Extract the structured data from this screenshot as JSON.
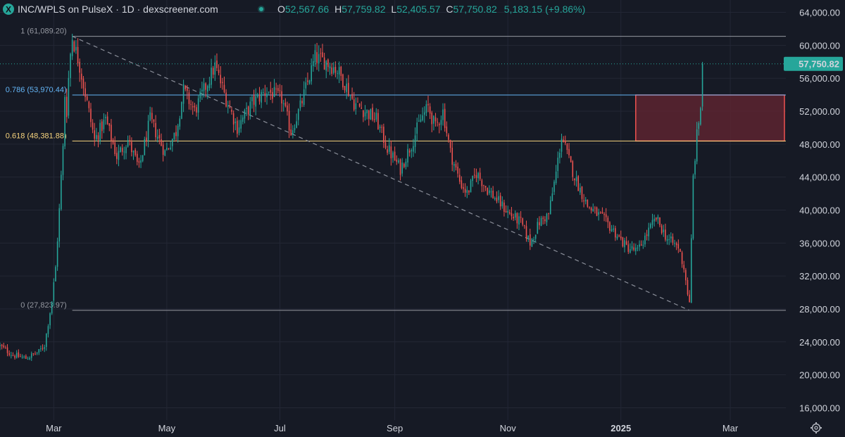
{
  "header": {
    "title": "INC/WPLS on PulseX · 1D · dexscreener.com",
    "logo_letter": "X",
    "ohlc": {
      "o_label": "O",
      "o_value": "52,567.66",
      "h_label": "H",
      "h_value": "57,759.82",
      "l_label": "L",
      "l_value": "52,405.57",
      "c_label": "C",
      "c_value": "57,750.82",
      "change": "5,183.15 (+9.86%)"
    }
  },
  "colors": {
    "background": "#161a25",
    "up": "#26a69a",
    "down": "#ef5350",
    "grid": "#232735",
    "fib_1": "#9598a1",
    "fib_0786": "#64b5f6",
    "fib_0618": "#f7d47e",
    "fib_0": "#9598a1",
    "zone_fill": "#5c2430",
    "zone_border": "#ef5350",
    "price_badge": "#26a69a"
  },
  "icons": {
    "logo": "dexscreener-logo-icon",
    "status": "live-status-dot-icon",
    "settings": "settings-gear-icon"
  },
  "chart_data": {
    "type": "candlestick",
    "symbol": "INC/WPLS",
    "timeframe": "1D",
    "y_axis": {
      "min": 14500,
      "max": 65500,
      "ticks": [
        16000,
        20000,
        24000,
        28000,
        32000,
        36000,
        40000,
        44000,
        48000,
        52000,
        56000,
        60000,
        64000
      ],
      "tick_labels": [
        "16,000.00",
        "20,000.00",
        "24,000.00",
        "28,000.00",
        "32,000.00",
        "36,000.00",
        "40,000.00",
        "44,000.00",
        "48,000.00",
        "52,000.00",
        "56,000.00",
        "60,000.00",
        "64,000.00"
      ]
    },
    "x_axis": {
      "start": "2024-02-01",
      "end": "2025-03-31",
      "ticks": [
        {
          "label": "Mar",
          "date": "2024-03-01",
          "bold": false
        },
        {
          "label": "May",
          "date": "2024-05-01",
          "bold": false
        },
        {
          "label": "Jul",
          "date": "2024-07-01",
          "bold": false
        },
        {
          "label": "Sep",
          "date": "2024-09-01",
          "bold": false
        },
        {
          "label": "Nov",
          "date": "2024-11-01",
          "bold": false
        },
        {
          "label": "2025",
          "date": "2025-01-01",
          "bold": true
        },
        {
          "label": "Mar",
          "date": "2025-03-01",
          "bold": false
        }
      ]
    },
    "last_price": 57750.82,
    "last_price_label": "57,750.82",
    "fib_levels": [
      {
        "ratio": "1",
        "value": 61089.2,
        "label": "1 (61,089.20)",
        "color_key": "fib_1"
      },
      {
        "ratio": "0.786",
        "value": 53970.44,
        "label": "0.786 (53,970.44)",
        "color_key": "fib_0786"
      },
      {
        "ratio": "0.618",
        "value": 48381.88,
        "label": "0.618 (48,381.88)",
        "color_key": "fib_0618"
      },
      {
        "ratio": "0",
        "value": 27823.97,
        "label": "0 (27,823.97)",
        "color_key": "fib_0"
      }
    ],
    "fib_start_date": "2024-03-11",
    "trendline": {
      "from_date": "2024-03-11",
      "from_value": 61089.2,
      "to_date": "2025-02-07",
      "to_value": 27823.97
    },
    "zone": {
      "from_date": "2025-01-09",
      "to_date": "2025-03-31",
      "top": 53970.44,
      "bottom": 48381.88
    },
    "path_points": [
      [
        "2024-02-01",
        23500
      ],
      [
        "2024-02-08",
        22400
      ],
      [
        "2024-02-15",
        22000
      ],
      [
        "2024-02-22",
        22800
      ],
      [
        "2024-02-25",
        23600
      ],
      [
        "2024-02-29",
        29000
      ],
      [
        "2024-03-02",
        33000
      ],
      [
        "2024-03-04",
        40000
      ],
      [
        "2024-03-05",
        44000
      ],
      [
        "2024-03-06",
        47500
      ],
      [
        "2024-03-07",
        54000
      ],
      [
        "2024-03-08",
        52000
      ],
      [
        "2024-03-09",
        56000
      ],
      [
        "2024-03-10",
        59000
      ],
      [
        "2024-03-11",
        61000
      ],
      [
        "2024-03-15",
        57500
      ],
      [
        "2024-03-19",
        53000
      ],
      [
        "2024-03-23",
        48500
      ],
      [
        "2024-03-29",
        51000
      ],
      [
        "2024-04-04",
        46500
      ],
      [
        "2024-04-10",
        48500
      ],
      [
        "2024-04-16",
        45000
      ],
      [
        "2024-04-22",
        51000
      ],
      [
        "2024-04-30",
        47000
      ],
      [
        "2024-05-06",
        49500
      ],
      [
        "2024-05-10",
        54500
      ],
      [
        "2024-05-16",
        52000
      ],
      [
        "2024-05-22",
        55000
      ],
      [
        "2024-05-27",
        57500
      ],
      [
        "2024-06-02",
        53500
      ],
      [
        "2024-06-08",
        50000
      ],
      [
        "2024-06-16",
        53000
      ],
      [
        "2024-06-24",
        54500
      ],
      [
        "2024-07-02",
        53500
      ],
      [
        "2024-07-07",
        49500
      ],
      [
        "2024-07-12",
        52500
      ],
      [
        "2024-07-16",
        55500
      ],
      [
        "2024-07-20",
        58500
      ],
      [
        "2024-07-26",
        58000
      ],
      [
        "2024-08-01",
        57000
      ],
      [
        "2024-08-06",
        55000
      ],
      [
        "2024-08-10",
        53000
      ],
      [
        "2024-08-16",
        52000
      ],
      [
        "2024-08-22",
        51000
      ],
      [
        "2024-08-28",
        47500
      ],
      [
        "2024-09-04",
        45000
      ],
      [
        "2024-09-10",
        48000
      ],
      [
        "2024-09-15",
        51000
      ],
      [
        "2024-09-19",
        52500
      ],
      [
        "2024-09-23",
        50000
      ],
      [
        "2024-09-27",
        52000
      ],
      [
        "2024-10-01",
        47000
      ],
      [
        "2024-10-06",
        43500
      ],
      [
        "2024-10-10",
        42000
      ],
      [
        "2024-10-15",
        44500
      ],
      [
        "2024-10-21",
        42500
      ],
      [
        "2024-10-27",
        41000
      ],
      [
        "2024-11-02",
        39500
      ],
      [
        "2024-11-08",
        38500
      ],
      [
        "2024-11-13",
        36000
      ],
      [
        "2024-11-18",
        38500
      ],
      [
        "2024-11-23",
        39500
      ],
      [
        "2024-11-27",
        44500
      ],
      [
        "2024-11-30",
        49000
      ],
      [
        "2024-12-04",
        46000
      ],
      [
        "2024-12-08",
        43500
      ],
      [
        "2024-12-14",
        40500
      ],
      [
        "2024-12-22",
        39000
      ],
      [
        "2024-12-28",
        37500
      ],
      [
        "2025-01-04",
        35500
      ],
      [
        "2025-01-10",
        35000
      ],
      [
        "2025-01-16",
        37500
      ],
      [
        "2025-01-20",
        39000
      ],
      [
        "2025-01-26",
        36500
      ],
      [
        "2025-02-01",
        35500
      ],
      [
        "2025-02-04",
        33000
      ],
      [
        "2025-02-07",
        28500
      ],
      [
        "2025-02-09",
        44000
      ],
      [
        "2025-02-11",
        49000
      ],
      [
        "2025-02-13",
        52500
      ],
      [
        "2025-02-14",
        57750
      ]
    ]
  }
}
